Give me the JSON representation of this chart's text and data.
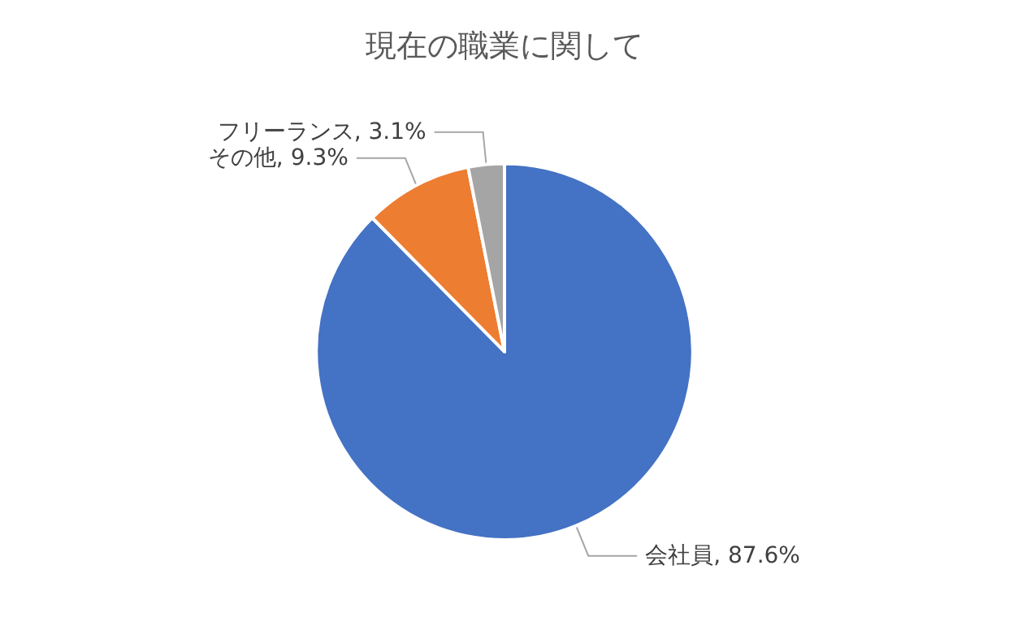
{
  "chart_data": {
    "type": "pie",
    "title": "現在の職業に関して",
    "categories": [
      "会社員",
      "その他",
      "フリーランス"
    ],
    "values": [
      87.6,
      9.3,
      3.1
    ],
    "value_labels": [
      "87.6%",
      "9.3%",
      "3.1%"
    ],
    "colors": [
      "#4472c4",
      "#ed7d31",
      "#a5a5a5"
    ],
    "legend": false
  }
}
